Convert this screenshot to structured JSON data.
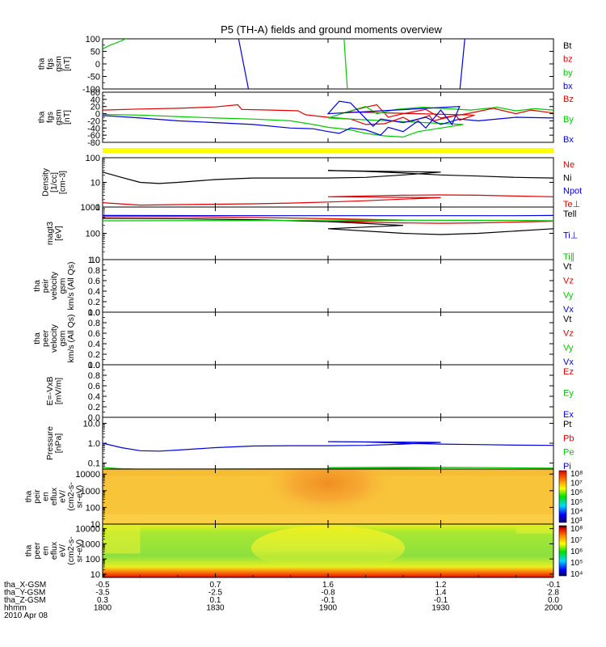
{
  "title": "P5 (TH-A) fields and ground moments overview",
  "colors": {
    "black": "#000000",
    "red": "#e00000",
    "green": "#00c800",
    "blue": "#0000e0",
    "yellow": "#ffff00"
  },
  "chart_data": [
    {
      "type": "line",
      "id": "fgs_dsl",
      "ylabel": [
        "tha",
        "fgs",
        "gsm",
        "[nT]"
      ],
      "ylim": [
        -100,
        100
      ],
      "yticks": [
        "100",
        "50",
        "0",
        "-50",
        "-100"
      ],
      "legend": [
        {
          "text": "Bt",
          "color": "#000000"
        },
        {
          "text": "bz",
          "color": "#e00000"
        },
        {
          "text": "by",
          "color": "#00c800"
        },
        {
          "text": "bx",
          "color": "#0000e0"
        }
      ],
      "series": [
        {
          "name": "by",
          "color": "#00c800",
          "x": [
            1800,
            1802,
            1805,
            1808
          ],
          "y": [
            60,
            75,
            92,
            115
          ]
        },
        {
          "name": "bx",
          "color": "#0000e0",
          "x": [
            1836,
            1839
          ],
          "y": [
            115,
            -115
          ]
        },
        {
          "name": "by",
          "color": "#00c800",
          "x": [
            1904.2,
            1905.2
          ],
          "y": [
            115,
            -115
          ]
        },
        {
          "name": "bx",
          "color": "#0000e0",
          "x": [
            1935,
            1936.5
          ],
          "y": [
            -115,
            115
          ]
        },
        {
          "name": "by",
          "color": "#00c800",
          "x": [
            1976,
            1983,
            1992,
            2000
          ],
          "y": [
            -115,
            -70,
            -20,
            25
          ]
        }
      ]
    },
    {
      "type": "line",
      "id": "fgs_gsm",
      "ylabel": [
        "tha",
        "fgs",
        "gsm",
        "[nT]"
      ],
      "ylim": [
        -80,
        60
      ],
      "yticks": [
        "60",
        "40",
        "20",
        "0",
        "-20",
        "-40",
        "-60",
        "-80"
      ],
      "legend": [
        {
          "text": "Bz",
          "color": "#e00000"
        },
        {
          "text": "By",
          "color": "#00c800"
        },
        {
          "text": "Bx",
          "color": "#0000e0"
        }
      ],
      "series": [
        {
          "name": "Bz",
          "color": "#e00000",
          "x": [
            1800,
            1810,
            1820,
            1830,
            1836,
            1837,
            1845,
            1852,
            1854,
            1860,
            1866,
            1870,
            1875,
            1880,
            1882,
            1887,
            1888,
            1894,
            1895,
            1899,
            1905,
            1910,
            1913,
            1916,
            1920,
            1926,
            1930,
            1937,
            1944,
            1950,
            1954,
            1960,
            1970,
            1980,
            1990,
            2000
          ],
          "y": [
            10,
            13,
            15,
            19,
            25,
            12,
            10,
            8,
            -3,
            -10,
            -15,
            -30,
            -28,
            -10,
            -22,
            -5,
            -20,
            -5,
            -18,
            -4,
            5,
            18,
            25,
            -10,
            0,
            12,
            -12,
            0,
            15,
            0,
            10,
            2,
            3,
            5,
            8,
            10
          ]
        },
        {
          "name": "By",
          "color": "#00c800",
          "x": [
            1800,
            1810,
            1820,
            1830,
            1840,
            1850,
            1856,
            1860,
            1866,
            1870,
            1875,
            1880,
            1884,
            1890,
            1896,
            1900,
            1905,
            1910,
            1913,
            1918,
            1925,
            1930,
            1938,
            1945,
            1950,
            1955,
            1960,
            1970,
            1980,
            1990,
            2000
          ],
          "y": [
            -2,
            -4,
            -8,
            -12,
            -15,
            -20,
            -30,
            -38,
            -45,
            -55,
            -62,
            -65,
            -50,
            -40,
            -30,
            -12,
            5,
            20,
            0,
            12,
            18,
            15,
            10,
            18,
            8,
            14,
            10,
            8,
            4,
            0,
            -2
          ]
        },
        {
          "name": "Bx",
          "color": "#0000e0",
          "x": [
            1800,
            1810,
            1820,
            1830,
            1840,
            1850,
            1856,
            1860,
            1863,
            1866,
            1870,
            1874,
            1876,
            1880,
            1884,
            1886,
            1890,
            1893,
            1895,
            1900,
            1903,
            1906,
            1912,
            1914,
            1920,
            1926,
            1930,
            1935,
            1940,
            1950,
            1960,
            1970,
            1980,
            1990,
            2000
          ],
          "y": [
            -5,
            -12,
            -20,
            -25,
            -30,
            -40,
            -42,
            -50,
            -55,
            -40,
            -45,
            -60,
            -38,
            -50,
            -20,
            -40,
            10,
            -30,
            20,
            0,
            35,
            30,
            -35,
            -15,
            -25,
            -10,
            -30,
            -15,
            -20,
            -10,
            -12,
            -15,
            -15,
            -12,
            -10
          ]
        }
      ]
    },
    {
      "type": "line",
      "id": "density",
      "ylabel": [
        "Density",
        "[1/cc]",
        "[cm-3]"
      ],
      "ylim": [
        1,
        100
      ],
      "scale": "log",
      "yticks": [
        "100",
        "10",
        "1"
      ],
      "legend": [
        {
          "text": "Ne",
          "color": "#e00000"
        },
        {
          "text": "Ni",
          "color": "#000000"
        },
        {
          "text": "Npot",
          "color": "#0000e0"
        },
        {
          "text": "Te⊥",
          "color": "#e00000"
        }
      ],
      "series": [
        {
          "name": "Ni",
          "color": "#000000",
          "x": [
            1800,
            1805,
            1810,
            1815,
            1820,
            1830,
            1840,
            1850,
            1860,
            1870,
            1880,
            1890,
            1900,
            1910,
            1920,
            1930,
            1940,
            1950,
            1960,
            1970,
            1980,
            1990,
            2000
          ],
          "y": [
            26,
            16,
            10,
            9,
            10,
            13,
            15,
            15,
            15,
            16,
            20,
            26,
            30,
            28,
            24,
            20,
            18,
            16,
            15,
            15,
            16,
            16,
            15
          ]
        },
        {
          "name": "Ne",
          "color": "#e00000",
          "x": [
            1800,
            1810,
            1820,
            1830,
            1840,
            1850,
            1860,
            1870,
            1880,
            1890,
            1900,
            1910,
            1920,
            1930,
            1940,
            1950,
            1960,
            1970,
            1980,
            1990,
            2000
          ],
          "y": [
            1.5,
            1.2,
            1.25,
            1.3,
            1.35,
            1.45,
            1.6,
            1.8,
            2.1,
            2.4,
            2.6,
            2.8,
            3.0,
            3.1,
            3.0,
            2.8,
            2.6,
            2.2,
            1.8,
            1.4,
            1.2
          ]
        }
      ]
    },
    {
      "type": "line",
      "id": "temperature",
      "ylabel": [
        "magt3",
        "[eV]"
      ],
      "ylim": [
        10,
        1000
      ],
      "scale": "log",
      "yticks": [
        "1000",
        "100",
        "10"
      ],
      "legend": [
        {
          "text": "Tell",
          "color": "#000000"
        },
        {
          "text": "Ti⊥",
          "color": "#0000e0"
        },
        {
          "text": "Ti∥",
          "color": "#00c800"
        }
      ],
      "series": [
        {
          "name": "Te⊥",
          "color": "#e00000",
          "x": [
            1800,
            1820,
            1840,
            1860,
            1880,
            1900,
            1920,
            1930,
            1940,
            1960,
            1980,
            2000
          ],
          "y": [
            430,
            430,
            400,
            360,
            320,
            280,
            250,
            240,
            250,
            290,
            350,
            420
          ]
        },
        {
          "name": "Tell",
          "color": "#000000",
          "x": [
            1800,
            1820,
            1840,
            1860,
            1880,
            1900,
            1920,
            1930,
            1940,
            1960,
            1980,
            2000
          ],
          "y": [
            370,
            360,
            330,
            280,
            200,
            150,
            100,
            90,
            100,
            150,
            240,
            330
          ]
        },
        {
          "name": "Ti⊥",
          "color": "#0000e0",
          "x": [
            1800,
            1850,
            1900,
            1950,
            2000
          ],
          "y": [
            480,
            470,
            470,
            470,
            480
          ]
        },
        {
          "name": "Ti∥",
          "color": "#00c800",
          "x": [
            1800,
            1850,
            1900,
            1950,
            2000
          ],
          "y": [
            300,
            310,
            320,
            310,
            300
          ]
        }
      ]
    },
    {
      "type": "line",
      "id": "peir_velocity",
      "ylabel": [
        "tha",
        "peir",
        "velocity",
        "gsm",
        "km/s (All Qs)"
      ],
      "ylim": [
        0,
        1
      ],
      "yticks": [
        "1.0",
        "0.8",
        "0.6",
        "0.4",
        "0.2",
        "0.0"
      ],
      "legend": [
        {
          "text": "Vt",
          "color": "#000000"
        },
        {
          "text": "Vz",
          "color": "#e00000"
        },
        {
          "text": "Vy",
          "color": "#00c800"
        },
        {
          "text": "Vx",
          "color": "#0000e0"
        }
      ],
      "series": []
    },
    {
      "type": "line",
      "id": "peer_velocity",
      "ylabel": [
        "tha",
        "peer",
        "velocity",
        "gsm",
        "km/s (All Qs)"
      ],
      "ylim": [
        0,
        1
      ],
      "yticks": [
        "1.0",
        "0.8",
        "0.6",
        "0.4",
        "0.2",
        "0.0"
      ],
      "legend": [
        {
          "text": "Vt",
          "color": "#000000"
        },
        {
          "text": "Vz",
          "color": "#e00000"
        },
        {
          "text": "Vy",
          "color": "#00c800"
        },
        {
          "text": "Vx",
          "color": "#0000e0"
        }
      ],
      "series": []
    },
    {
      "type": "line",
      "id": "efield",
      "ylabel": [
        "E=-VxB",
        "[mV/m]"
      ],
      "ylim": [
        0,
        1
      ],
      "yticks": [
        "1.0",
        "0.8",
        "0.6",
        "0.4",
        "0.2",
        "0.0"
      ],
      "legend": [
        {
          "text": "Ez",
          "color": "#e00000"
        },
        {
          "text": "Ey",
          "color": "#00c800"
        },
        {
          "text": "Ex",
          "color": "#0000e0"
        }
      ],
      "series": []
    },
    {
      "type": "line",
      "id": "pressure",
      "ylabel": [
        "Pressure",
        "[nPa]"
      ],
      "ylim": [
        0.05,
        20
      ],
      "scale": "log",
      "yticks": [
        "10.0",
        "1.0",
        "0.1"
      ],
      "legend": [
        {
          "text": "Pt",
          "color": "#000000"
        },
        {
          "text": "Pb",
          "color": "#e00000"
        },
        {
          "text": "Pe",
          "color": "#00c800"
        },
        {
          "text": "Pi",
          "color": "#0000e0"
        }
      ],
      "series": [
        {
          "name": "Pi",
          "color": "#0000e0",
          "x": [
            1800,
            1805,
            1810,
            1815,
            1820,
            1830,
            1840,
            1850,
            1860,
            1870,
            1880,
            1890,
            1900,
            1910,
            1920,
            1930,
            1940,
            1950,
            1960,
            1970,
            1980,
            1990,
            2000
          ],
          "y": [
            1.0,
            0.6,
            0.42,
            0.4,
            0.45,
            0.6,
            0.72,
            0.75,
            0.75,
            0.78,
            0.9,
            1.1,
            1.2,
            1.15,
            1.0,
            0.9,
            0.85,
            0.8,
            0.78,
            0.76,
            0.76,
            0.78,
            0.78
          ]
        },
        {
          "name": "Pe",
          "color": "#00c800",
          "x": [
            1800,
            1805,
            1810,
            1830,
            1850,
            1870,
            1890,
            1900,
            1920,
            1940,
            1960,
            1980,
            2000
          ],
          "y": [
            0.06,
            0.052,
            0.05,
            0.051,
            0.052,
            0.054,
            0.058,
            0.06,
            0.062,
            0.06,
            0.056,
            0.052,
            0.05
          ]
        }
      ]
    },
    {
      "type": "heatmap",
      "id": "peir_eflux",
      "ylabel": [
        "tha",
        "peir",
        "en",
        "eflux",
        "eV/",
        "(cm2-s-",
        "sr-eV)"
      ],
      "ylim": [
        10,
        20000
      ],
      "scale": "log",
      "yticks": [
        "10000",
        "1000",
        "100",
        "10"
      ],
      "colorbar": {
        "labels": [
          "10⁸",
          "10⁷",
          "10⁶",
          "10⁵",
          "10⁴",
          "10³"
        ],
        "range": [
          1000,
          100000000
        ]
      }
    },
    {
      "type": "heatmap",
      "id": "peer_eflux",
      "ylabel": [
        "tha",
        "peer",
        "en",
        "eflux",
        "eV/",
        "(cm2-s-",
        "sr-eV)"
      ],
      "ylim": [
        6,
        20000
      ],
      "scale": "log",
      "yticks": [
        "10000",
        "1000",
        "100",
        "10"
      ],
      "colorbar": {
        "labels": [
          "10⁸",
          "10⁷",
          "10⁶",
          "10⁵",
          "10⁴"
        ],
        "range": [
          10000,
          100000000
        ]
      }
    }
  ],
  "xaxis": {
    "ticks": [
      1800,
      1830,
      1900,
      1930,
      2000
    ],
    "rows": [
      {
        "label": "tha_X-GSM",
        "values": [
          "-0.5",
          "0.7",
          "1.6",
          "1.2",
          "-0.1"
        ]
      },
      {
        "label": "tha_Y-GSM",
        "values": [
          "-3.5",
          "-2.5",
          "-0.8",
          "1.4",
          "2.8"
        ]
      },
      {
        "label": "tha_Z-GSM",
        "values": [
          "0.3",
          "0.1",
          "-0.1",
          "-0.1",
          "0.0"
        ]
      },
      {
        "label": "hhmm",
        "values": [
          "1800",
          "1830",
          "1900",
          "1930",
          "2000"
        ]
      }
    ],
    "date": "2010 Apr 08"
  }
}
